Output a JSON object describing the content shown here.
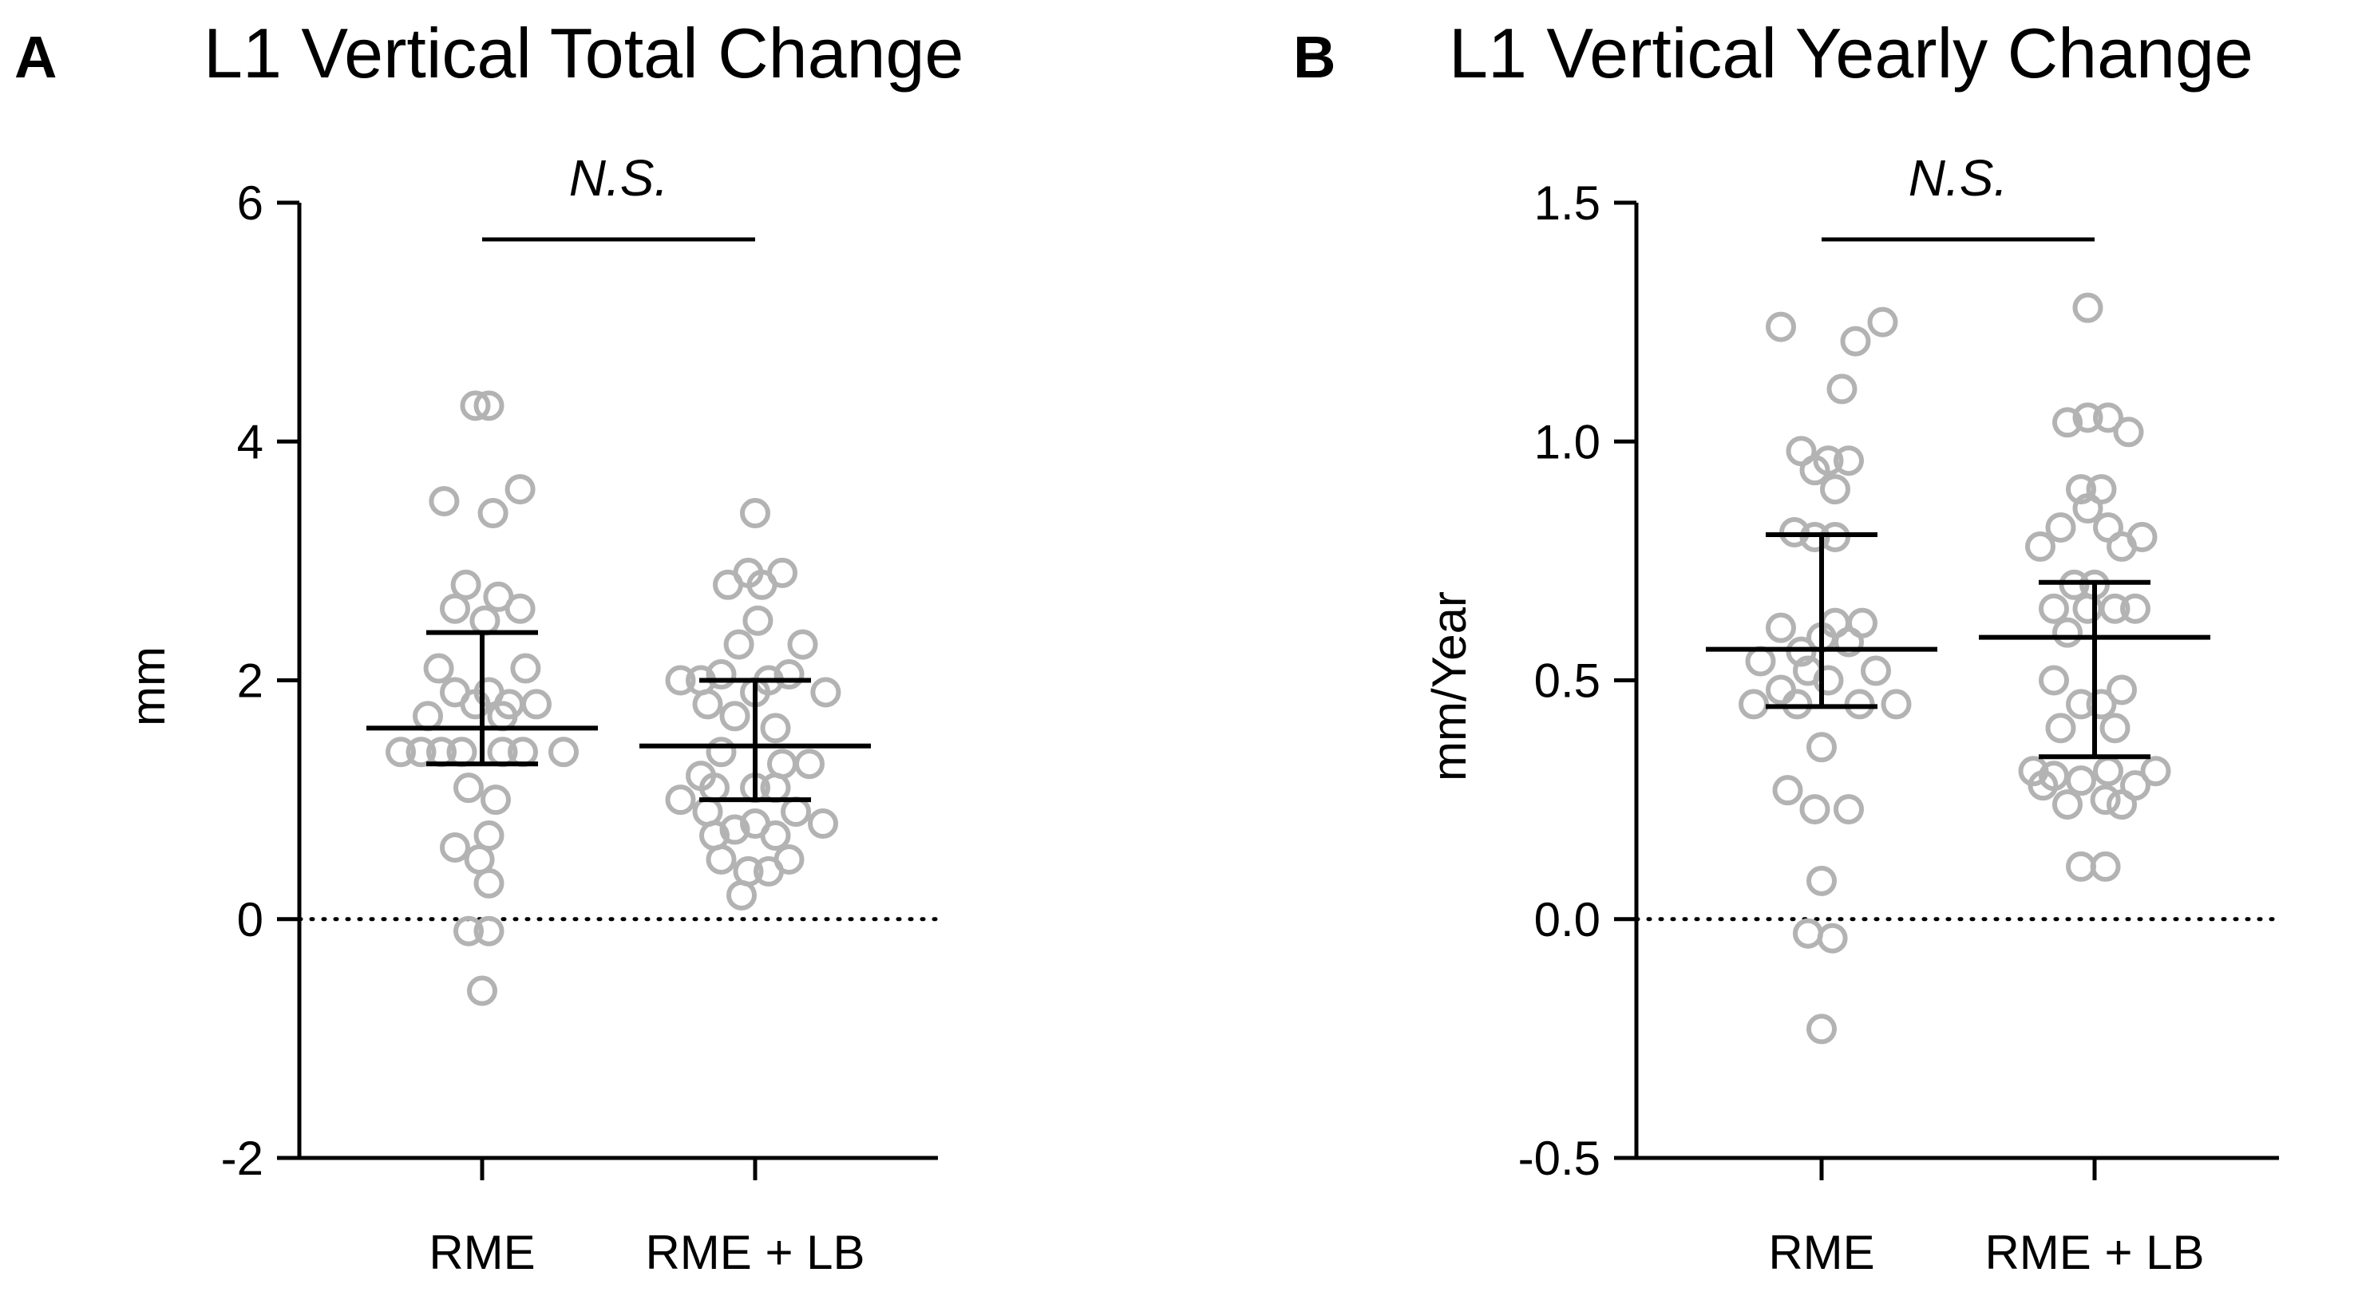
{
  "chart_data": [
    {
      "type": "scatter",
      "panel": "A",
      "title": "L1 Vertical Total Change",
      "xlabel": "",
      "ylabel": "mm",
      "ylim": [
        -2,
        6
      ],
      "yticks": [
        -2,
        0,
        2,
        4,
        6
      ],
      "ytick_labels": [
        "-2",
        "0",
        "2",
        "4",
        "6"
      ],
      "categories": [
        "RME",
        "RME + LB"
      ],
      "reference_line": 0,
      "significance": {
        "label": "N.S.",
        "between": [
          "RME",
          "RME + LB"
        ]
      },
      "series": [
        {
          "name": "RME",
          "median": 1.6,
          "lower": 1.3,
          "upper": 2.4,
          "points": [
            {
              "x": -0.05,
              "y": 4.3
            },
            {
              "x": 0.05,
              "y": 4.3
            },
            {
              "x": 0.28,
              "y": 3.6
            },
            {
              "x": -0.28,
              "y": 3.5
            },
            {
              "x": 0.08,
              "y": 3.4
            },
            {
              "x": -0.12,
              "y": 2.8
            },
            {
              "x": 0.12,
              "y": 2.7
            },
            {
              "x": -0.2,
              "y": 2.6
            },
            {
              "x": 0.28,
              "y": 2.6
            },
            {
              "x": 0.02,
              "y": 2.5
            },
            {
              "x": -0.32,
              "y": 2.1
            },
            {
              "x": 0.32,
              "y": 2.1
            },
            {
              "x": -0.2,
              "y": 1.9
            },
            {
              "x": 0.05,
              "y": 1.9
            },
            {
              "x": -0.05,
              "y": 1.8
            },
            {
              "x": 0.2,
              "y": 1.8
            },
            {
              "x": 0.4,
              "y": 1.8
            },
            {
              "x": -0.4,
              "y": 1.7
            },
            {
              "x": 0.15,
              "y": 1.7
            },
            {
              "x": -0.6,
              "y": 1.4
            },
            {
              "x": -0.45,
              "y": 1.4
            },
            {
              "x": -0.3,
              "y": 1.4
            },
            {
              "x": -0.15,
              "y": 1.4
            },
            {
              "x": 0.15,
              "y": 1.4
            },
            {
              "x": 0.3,
              "y": 1.4
            },
            {
              "x": 0.6,
              "y": 1.4
            },
            {
              "x": -0.1,
              "y": 1.1
            },
            {
              "x": 0.1,
              "y": 1.0
            },
            {
              "x": 0.05,
              "y": 0.7
            },
            {
              "x": -0.2,
              "y": 0.6
            },
            {
              "x": -0.02,
              "y": 0.5
            },
            {
              "x": 0.05,
              "y": 0.3
            },
            {
              "x": -0.1,
              "y": -0.1
            },
            {
              "x": 0.05,
              "y": -0.1
            },
            {
              "x": 0.0,
              "y": -0.6
            }
          ]
        },
        {
          "name": "RME + LB",
          "median": 1.45,
          "lower": 1.0,
          "upper": 2.0,
          "points": [
            {
              "x": 0.0,
              "y": 3.4
            },
            {
              "x": -0.05,
              "y": 2.9
            },
            {
              "x": 0.2,
              "y": 2.9
            },
            {
              "x": -0.2,
              "y": 2.8
            },
            {
              "x": 0.05,
              "y": 2.8
            },
            {
              "x": 0.02,
              "y": 2.5
            },
            {
              "x": -0.12,
              "y": 2.3
            },
            {
              "x": 0.35,
              "y": 2.3
            },
            {
              "x": -0.55,
              "y": 2.0
            },
            {
              "x": -0.4,
              "y": 2.0
            },
            {
              "x": -0.25,
              "y": 2.05
            },
            {
              "x": 0.1,
              "y": 2.0
            },
            {
              "x": 0.25,
              "y": 2.05
            },
            {
              "x": -0.35,
              "y": 1.8
            },
            {
              "x": 0.0,
              "y": 1.9
            },
            {
              "x": 0.52,
              "y": 1.9
            },
            {
              "x": -0.15,
              "y": 1.7
            },
            {
              "x": 0.15,
              "y": 1.6
            },
            {
              "x": -0.25,
              "y": 1.4
            },
            {
              "x": 0.2,
              "y": 1.3
            },
            {
              "x": 0.4,
              "y": 1.3
            },
            {
              "x": -0.4,
              "y": 1.2
            },
            {
              "x": -0.55,
              "y": 1.0
            },
            {
              "x": -0.3,
              "y": 1.1
            },
            {
              "x": 0.0,
              "y": 1.1
            },
            {
              "x": 0.15,
              "y": 1.1
            },
            {
              "x": -0.35,
              "y": 0.9
            },
            {
              "x": 0.3,
              "y": 0.9
            },
            {
              "x": 0.5,
              "y": 0.8
            },
            {
              "x": -0.3,
              "y": 0.7
            },
            {
              "x": -0.15,
              "y": 0.75
            },
            {
              "x": 0.0,
              "y": 0.8
            },
            {
              "x": 0.15,
              "y": 0.7
            },
            {
              "x": -0.25,
              "y": 0.5
            },
            {
              "x": 0.25,
              "y": 0.5
            },
            {
              "x": -0.05,
              "y": 0.4
            },
            {
              "x": 0.1,
              "y": 0.4
            },
            {
              "x": -0.1,
              "y": 0.2
            }
          ]
        }
      ]
    },
    {
      "type": "scatter",
      "panel": "B",
      "title": "L1 Vertical Yearly Change",
      "xlabel": "",
      "ylabel": "mm/Year",
      "ylim": [
        -0.5,
        1.5
      ],
      "yticks": [
        -0.5,
        0.0,
        0.5,
        1.0,
        1.5
      ],
      "ytick_labels": [
        "-0.5",
        "0.0",
        "0.5",
        "1.0",
        "1.5"
      ],
      "categories": [
        "RME",
        "RME + LB"
      ],
      "reference_line": 0,
      "significance": {
        "label": "N.S.",
        "between": [
          "RME",
          "RME + LB"
        ]
      },
      "series": [
        {
          "name": "RME",
          "median": 0.565,
          "lower": 0.445,
          "upper": 0.805,
          "points": [
            {
              "x": 0.45,
              "y": 1.25
            },
            {
              "x": -0.3,
              "y": 1.24
            },
            {
              "x": 0.25,
              "y": 1.21
            },
            {
              "x": 0.15,
              "y": 1.11
            },
            {
              "x": -0.15,
              "y": 0.98
            },
            {
              "x": 0.05,
              "y": 0.96
            },
            {
              "x": 0.2,
              "y": 0.96
            },
            {
              "x": -0.05,
              "y": 0.94
            },
            {
              "x": 0.1,
              "y": 0.9
            },
            {
              "x": -0.2,
              "y": 0.81
            },
            {
              "x": -0.05,
              "y": 0.8
            },
            {
              "x": 0.1,
              "y": 0.8
            },
            {
              "x": -0.3,
              "y": 0.61
            },
            {
              "x": 0.1,
              "y": 0.62
            },
            {
              "x": 0.3,
              "y": 0.62
            },
            {
              "x": 0.0,
              "y": 0.59
            },
            {
              "x": 0.2,
              "y": 0.58
            },
            {
              "x": -0.15,
              "y": 0.56
            },
            {
              "x": -0.45,
              "y": 0.54
            },
            {
              "x": -0.1,
              "y": 0.52
            },
            {
              "x": 0.4,
              "y": 0.52
            },
            {
              "x": 0.05,
              "y": 0.5
            },
            {
              "x": -0.3,
              "y": 0.48
            },
            {
              "x": -0.5,
              "y": 0.45
            },
            {
              "x": -0.18,
              "y": 0.45
            },
            {
              "x": 0.28,
              "y": 0.45
            },
            {
              "x": 0.55,
              "y": 0.45
            },
            {
              "x": 0.0,
              "y": 0.36
            },
            {
              "x": -0.25,
              "y": 0.27
            },
            {
              "x": -0.05,
              "y": 0.23
            },
            {
              "x": 0.2,
              "y": 0.23
            },
            {
              "x": 0.0,
              "y": 0.08
            },
            {
              "x": -0.1,
              "y": -0.03
            },
            {
              "x": 0.08,
              "y": -0.04
            },
            {
              "x": 0.0,
              "y": -0.23
            }
          ]
        },
        {
          "name": "RME + LB",
          "median": 0.59,
          "lower": 0.34,
          "upper": 0.705,
          "points": [
            {
              "x": -0.05,
              "y": 1.28
            },
            {
              "x": -0.2,
              "y": 1.04
            },
            {
              "x": -0.05,
              "y": 1.05
            },
            {
              "x": 0.1,
              "y": 1.05
            },
            {
              "x": 0.25,
              "y": 1.02
            },
            {
              "x": -0.1,
              "y": 0.9
            },
            {
              "x": 0.05,
              "y": 0.9
            },
            {
              "x": -0.05,
              "y": 0.86
            },
            {
              "x": -0.25,
              "y": 0.82
            },
            {
              "x": 0.1,
              "y": 0.82
            },
            {
              "x": 0.35,
              "y": 0.8
            },
            {
              "x": -0.4,
              "y": 0.78
            },
            {
              "x": 0.2,
              "y": 0.78
            },
            {
              "x": -0.15,
              "y": 0.7
            },
            {
              "x": 0.0,
              "y": 0.7
            },
            {
              "x": -0.3,
              "y": 0.65
            },
            {
              "x": -0.05,
              "y": 0.65
            },
            {
              "x": 0.15,
              "y": 0.65
            },
            {
              "x": 0.3,
              "y": 0.65
            },
            {
              "x": -0.2,
              "y": 0.6
            },
            {
              "x": -0.3,
              "y": 0.5
            },
            {
              "x": 0.2,
              "y": 0.48
            },
            {
              "x": -0.1,
              "y": 0.45
            },
            {
              "x": 0.05,
              "y": 0.45
            },
            {
              "x": -0.25,
              "y": 0.4
            },
            {
              "x": 0.15,
              "y": 0.4
            },
            {
              "x": -0.45,
              "y": 0.31
            },
            {
              "x": -0.3,
              "y": 0.3
            },
            {
              "x": 0.1,
              "y": 0.31
            },
            {
              "x": 0.45,
              "y": 0.31
            },
            {
              "x": -0.38,
              "y": 0.28
            },
            {
              "x": -0.1,
              "y": 0.29
            },
            {
              "x": 0.3,
              "y": 0.28
            },
            {
              "x": 0.08,
              "y": 0.25
            },
            {
              "x": -0.2,
              "y": 0.24
            },
            {
              "x": 0.2,
              "y": 0.24
            },
            {
              "x": -0.1,
              "y": 0.11
            },
            {
              "x": 0.08,
              "y": 0.11
            }
          ]
        }
      ]
    }
  ],
  "colors": {
    "point_stroke": "#b3b3b3",
    "axis": "#000000",
    "summary": "#000000",
    "background": "#ffffff"
  }
}
